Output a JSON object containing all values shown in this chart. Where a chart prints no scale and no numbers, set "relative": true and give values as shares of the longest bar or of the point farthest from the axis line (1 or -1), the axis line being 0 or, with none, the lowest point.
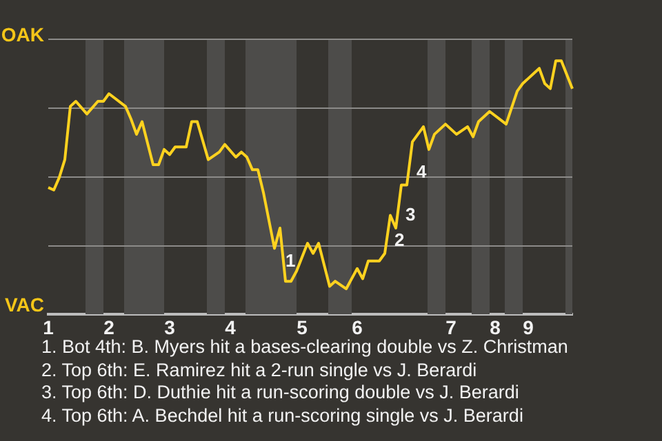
{
  "chart_data": {
    "type": "line",
    "color": "#ffd21f",
    "marker": "none",
    "legend": false,
    "grid": "y",
    "relative": true,
    "categories": [
      "1",
      null,
      null,
      null,
      null,
      null,
      null,
      null,
      null,
      null,
      null,
      "2",
      null,
      null,
      null,
      null,
      null,
      null,
      null,
      null,
      null,
      null,
      "3",
      null,
      null,
      null,
      null,
      null,
      null,
      null,
      null,
      null,
      null,
      "4",
      null,
      null,
      null,
      null,
      null,
      null,
      null,
      null,
      null,
      null,
      null,
      null,
      "5",
      null,
      null,
      null,
      null,
      null,
      null,
      null,
      null,
      null,
      "6",
      null,
      null,
      null,
      null,
      null,
      null,
      null,
      null,
      null,
      null,
      null,
      null,
      null,
      null,
      null,
      null,
      "7",
      null,
      null,
      null,
      null,
      null,
      null,
      null,
      "8",
      null,
      null,
      null,
      null,
      null,
      "9",
      null,
      null,
      null,
      null,
      null,
      null,
      null,
      null
    ],
    "values": [
      0.5,
      0.49,
      0.54,
      0.61,
      0.82,
      0.84,
      null,
      0.79,
      null,
      0.84,
      0.84,
      0.87,
      null,
      null,
      0.82,
      0.77,
      0.71,
      0.76,
      null,
      0.59,
      0.59,
      0.65,
      0.63,
      0.66,
      null,
      0.66,
      0.76,
      0.76,
      null,
      0.61,
      null,
      0.64,
      0.67,
      null,
      0.62,
      0.64,
      0.62,
      0.57,
      0.57,
      0.48,
      null,
      0.26,
      0.34,
      0.13,
      0.13,
      0.17,
      null,
      0.28,
      0.24,
      0.28,
      null,
      0.11,
      0.13,
      null,
      0.1,
      null,
      0.18,
      0.14,
      0.21,
      null,
      0.21,
      0.24,
      0.39,
      0.34,
      0.51,
      0.51,
      0.68,
      null,
      0.74,
      0.65,
      0.71,
      null,
      0.75,
      null,
      0.71,
      null,
      0.74,
      0.7,
      0.76,
      null,
      0.8,
      null,
      null,
      0.75,
      null,
      0.88,
      0.91,
      null,
      null,
      0.97,
      0.91,
      0.89,
      1,
      1,
      null,
      0.89
    ],
    "annotations": [
      "OAK",
      "VAC",
      "1",
      "2",
      "3",
      "4",
      "1. Bot 4th: B. Myers hit a bases-clearing double vs Z. Christman",
      "2. Top 6th: E. Ramirez hit a 2-run single vs J. Berardi",
      "3. Top 6th: D. Duthie hit a run-scoring double vs J. Berardi",
      "4. Top 6th: A. Bechdel hit a run-scoring single vs J. Berardi"
    ]
  }
}
